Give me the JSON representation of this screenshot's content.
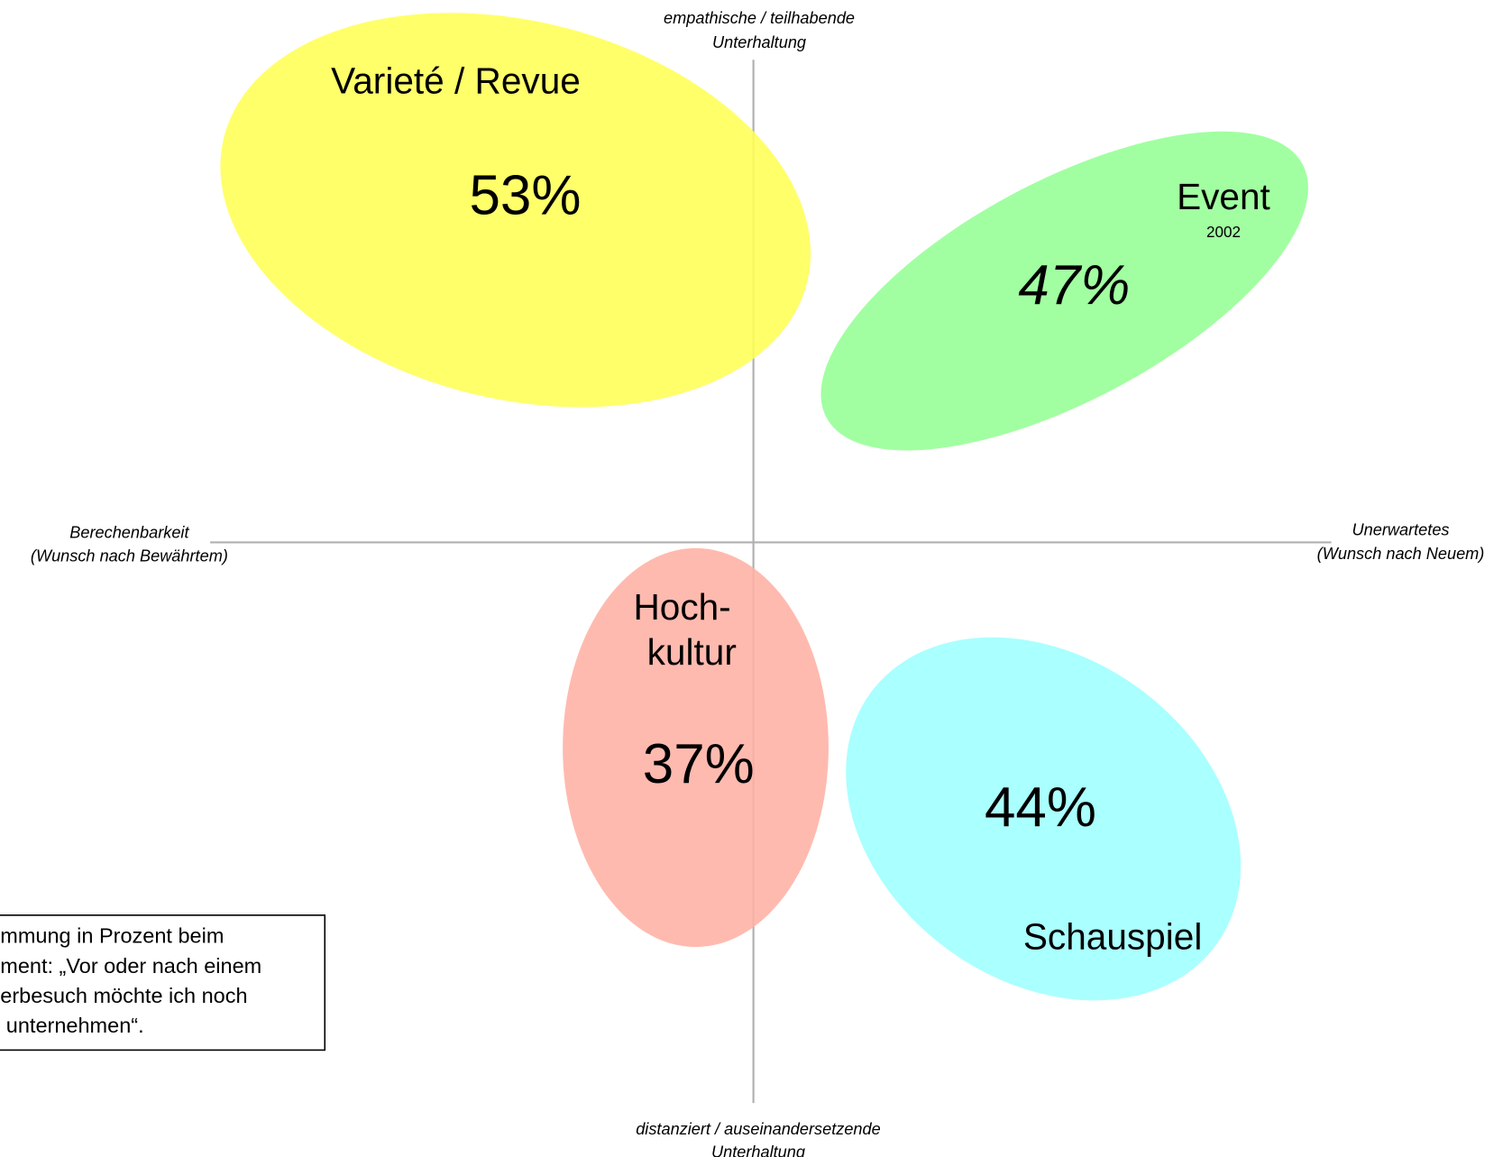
{
  "axes": {
    "top": [
      "empathische / teilhabende",
      "Unterhaltung"
    ],
    "left": [
      "Berechenbarkeit",
      "(Wunsch nach Bewährtem)"
    ],
    "right": [
      "Unerwartetes",
      "(Wunsch nach Neuem)"
    ],
    "bottom": [
      "distanziert / auseinandersetzende",
      "Unterhaltung"
    ]
  },
  "clusters": [
    {
      "label": "Varieté / Revue",
      "percent": "53%"
    },
    {
      "label": "Event",
      "sublabel": "2002",
      "percent": "47%"
    },
    {
      "label": [
        "Hoch-",
        "kultur"
      ],
      "percent": "37%"
    },
    {
      "label": "Schauspiel",
      "percent": "44%"
    }
  ],
  "note": [
    "mmung in Prozent beim",
    "ment: „Vor oder nach einem",
    "erbesuch möchte ich noch",
    " unternehmen“."
  ]
}
